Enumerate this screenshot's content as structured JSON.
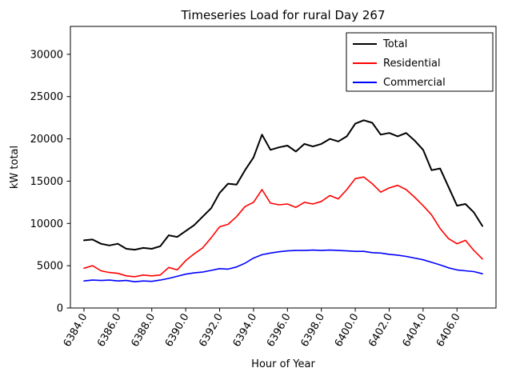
{
  "figure": {
    "background": "#ffffff"
  },
  "chart_data": {
    "type": "line",
    "title": "Timeseries Load for rural   Day 267",
    "xlabel": "Hour of Year",
    "ylabel": "kW total",
    "xlim": [
      6383.2,
      6408.3
    ],
    "ylim": [
      0,
      33300
    ],
    "xticks": [
      6384,
      6386,
      6388,
      6390,
      6392,
      6394,
      6396,
      6398,
      6400,
      6402,
      6404,
      6406
    ],
    "xtick_labels": [
      "6384.0",
      "6386.0",
      "6388.0",
      "6390.0",
      "6392.0",
      "6394.0",
      "6396.0",
      "6398.0",
      "6400.0",
      "6402.0",
      "6404.0",
      "6406.0"
    ],
    "yticks": [
      0,
      5000,
      10000,
      15000,
      20000,
      25000,
      30000
    ],
    "ytick_labels": [
      "0",
      "5000",
      "10000",
      "15000",
      "20000",
      "25000",
      "30000"
    ],
    "grid": false,
    "legend_position": "upper right",
    "x": [
      6384.0,
      6384.5,
      6385.0,
      6385.5,
      6386.0,
      6386.5,
      6387.0,
      6387.5,
      6388.0,
      6388.5,
      6389.0,
      6389.5,
      6390.0,
      6390.5,
      6391.0,
      6391.5,
      6392.0,
      6392.5,
      6393.0,
      6393.5,
      6394.0,
      6394.5,
      6395.0,
      6395.5,
      6396.0,
      6396.5,
      6397.0,
      6397.5,
      6398.0,
      6398.5,
      6399.0,
      6399.5,
      6400.0,
      6400.5,
      6401.0,
      6401.5,
      6402.0,
      6402.5,
      6403.0,
      6403.5,
      6404.0,
      6404.5,
      6405.0,
      6405.5,
      6406.0,
      6406.5,
      6407.0,
      6407.5
    ],
    "series": [
      {
        "name": "Total",
        "color": "#000000",
        "linewidth": 2,
        "values": [
          8000,
          8100,
          7600,
          7400,
          7600,
          7000,
          6900,
          7100,
          7000,
          7300,
          8600,
          8400,
          9100,
          9800,
          10800,
          11800,
          13600,
          14700,
          14600,
          16300,
          17800,
          20500,
          18700,
          19000,
          19200,
          18500,
          19400,
          19100,
          19400,
          20000,
          19700,
          20300,
          21800,
          22200,
          21900,
          20500,
          20700,
          20300,
          20700,
          19800,
          18700,
          16300,
          16500,
          14300,
          12100,
          12300,
          11300,
          9700
        ]
      },
      {
        "name": "Residential",
        "color": "#ff0000",
        "linewidth": 1.6,
        "values": [
          4700,
          5000,
          4400,
          4200,
          4100,
          3800,
          3700,
          3900,
          3800,
          3900,
          4800,
          4500,
          5600,
          6400,
          7100,
          8300,
          9600,
          9900,
          10800,
          12000,
          12500,
          14000,
          12400,
          12200,
          12300,
          11900,
          12500,
          12300,
          12600,
          13300,
          12900,
          14000,
          15300,
          15500,
          14700,
          13700,
          14200,
          14500,
          14000,
          13100,
          12100,
          11000,
          9400,
          8200,
          7600,
          8000,
          6800,
          5800
        ]
      },
      {
        "name": "Commercial",
        "color": "#0000ff",
        "linewidth": 1.6,
        "values": [
          3200,
          3300,
          3250,
          3300,
          3200,
          3250,
          3100,
          3200,
          3150,
          3300,
          3500,
          3750,
          4000,
          4150,
          4250,
          4450,
          4650,
          4600,
          4850,
          5300,
          5900,
          6300,
          6500,
          6650,
          6750,
          6800,
          6800,
          6850,
          6800,
          6850,
          6800,
          6750,
          6700,
          6700,
          6550,
          6500,
          6350,
          6250,
          6100,
          5900,
          5700,
          5400,
          5100,
          4750,
          4500,
          4400,
          4300,
          4050
        ]
      }
    ]
  }
}
